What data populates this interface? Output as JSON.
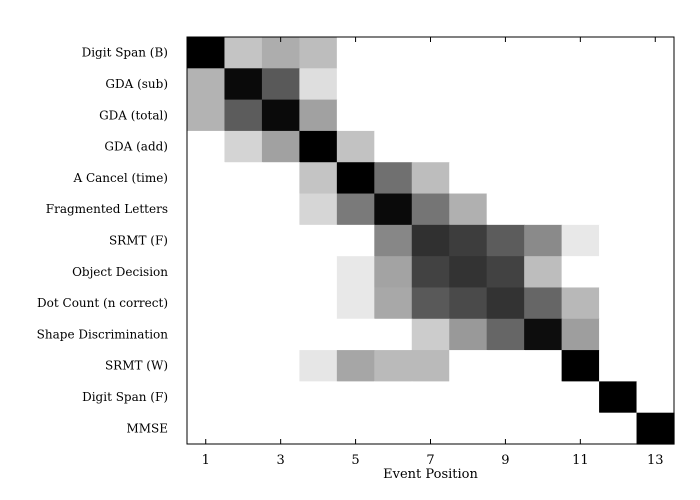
{
  "chart_data": {
    "type": "heatmap",
    "title": "",
    "xlabel": "Event Position",
    "ylabel": "",
    "x_ticks": [
      "1",
      "3",
      "5",
      "7",
      "9",
      "11",
      "13"
    ],
    "x_tick_values": [
      1,
      3,
      5,
      7,
      9,
      11,
      13
    ],
    "x_range": [
      1,
      13
    ],
    "colormap": "grayscale: 0 = white, 1 = black",
    "grid": false,
    "rows": [
      {
        "label": "Digit Span (B)",
        "values": [
          1.0,
          0.23,
          0.32,
          0.26,
          0,
          0,
          0,
          0,
          0,
          0,
          0,
          0,
          0
        ]
      },
      {
        "label": "GDA (sub)",
        "values": [
          0.3,
          0.96,
          0.65,
          0.13,
          0,
          0,
          0,
          0,
          0,
          0,
          0,
          0,
          0
        ]
      },
      {
        "label": "GDA (total)",
        "values": [
          0.3,
          0.64,
          0.96,
          0.37,
          0,
          0,
          0,
          0,
          0,
          0,
          0,
          0,
          0
        ]
      },
      {
        "label": "GDA (add)",
        "values": [
          0,
          0.17,
          0.37,
          1.0,
          0.24,
          0,
          0,
          0,
          0,
          0,
          0,
          0,
          0
        ]
      },
      {
        "label": "A Cancel (time)",
        "values": [
          0,
          0,
          0,
          0.23,
          1.0,
          0.56,
          0.26,
          0,
          0,
          0,
          0,
          0,
          0
        ]
      },
      {
        "label": "Fragmented Letters",
        "values": [
          0,
          0,
          0,
          0.16,
          0.52,
          0.96,
          0.54,
          0.31,
          0,
          0,
          0,
          0,
          0
        ]
      },
      {
        "label": "SRMT (F)",
        "values": [
          0,
          0,
          0,
          0,
          0,
          0.47,
          0.81,
          0.76,
          0.64,
          0.46,
          0.09,
          0,
          0
        ]
      },
      {
        "label": "Object Decision",
        "values": [
          0,
          0,
          0,
          0,
          0.09,
          0.36,
          0.74,
          0.8,
          0.74,
          0.26,
          0,
          0,
          0
        ]
      },
      {
        "label": "Dot Count (n correct)",
        "values": [
          0,
          0,
          0,
          0,
          0.09,
          0.34,
          0.65,
          0.71,
          0.8,
          0.6,
          0.28,
          0,
          0
        ]
      },
      {
        "label": "Shape Discrimination",
        "values": [
          0,
          0,
          0,
          0,
          0,
          0,
          0.2,
          0.4,
          0.6,
          0.95,
          0.38,
          0,
          0
        ]
      },
      {
        "label": "SRMT (W)",
        "values": [
          0,
          0,
          0,
          0.1,
          0.35,
          0.27,
          0.27,
          0,
          0,
          0,
          1.0,
          0,
          0
        ]
      },
      {
        "label": "Digit Span (F)",
        "values": [
          0,
          0,
          0,
          0,
          0,
          0,
          0,
          0,
          0,
          0,
          0,
          1.0,
          0
        ]
      },
      {
        "label": "MMSE",
        "values": [
          0,
          0,
          0,
          0,
          0,
          0,
          0,
          0,
          0,
          0,
          0,
          0,
          1.0
        ]
      }
    ]
  }
}
